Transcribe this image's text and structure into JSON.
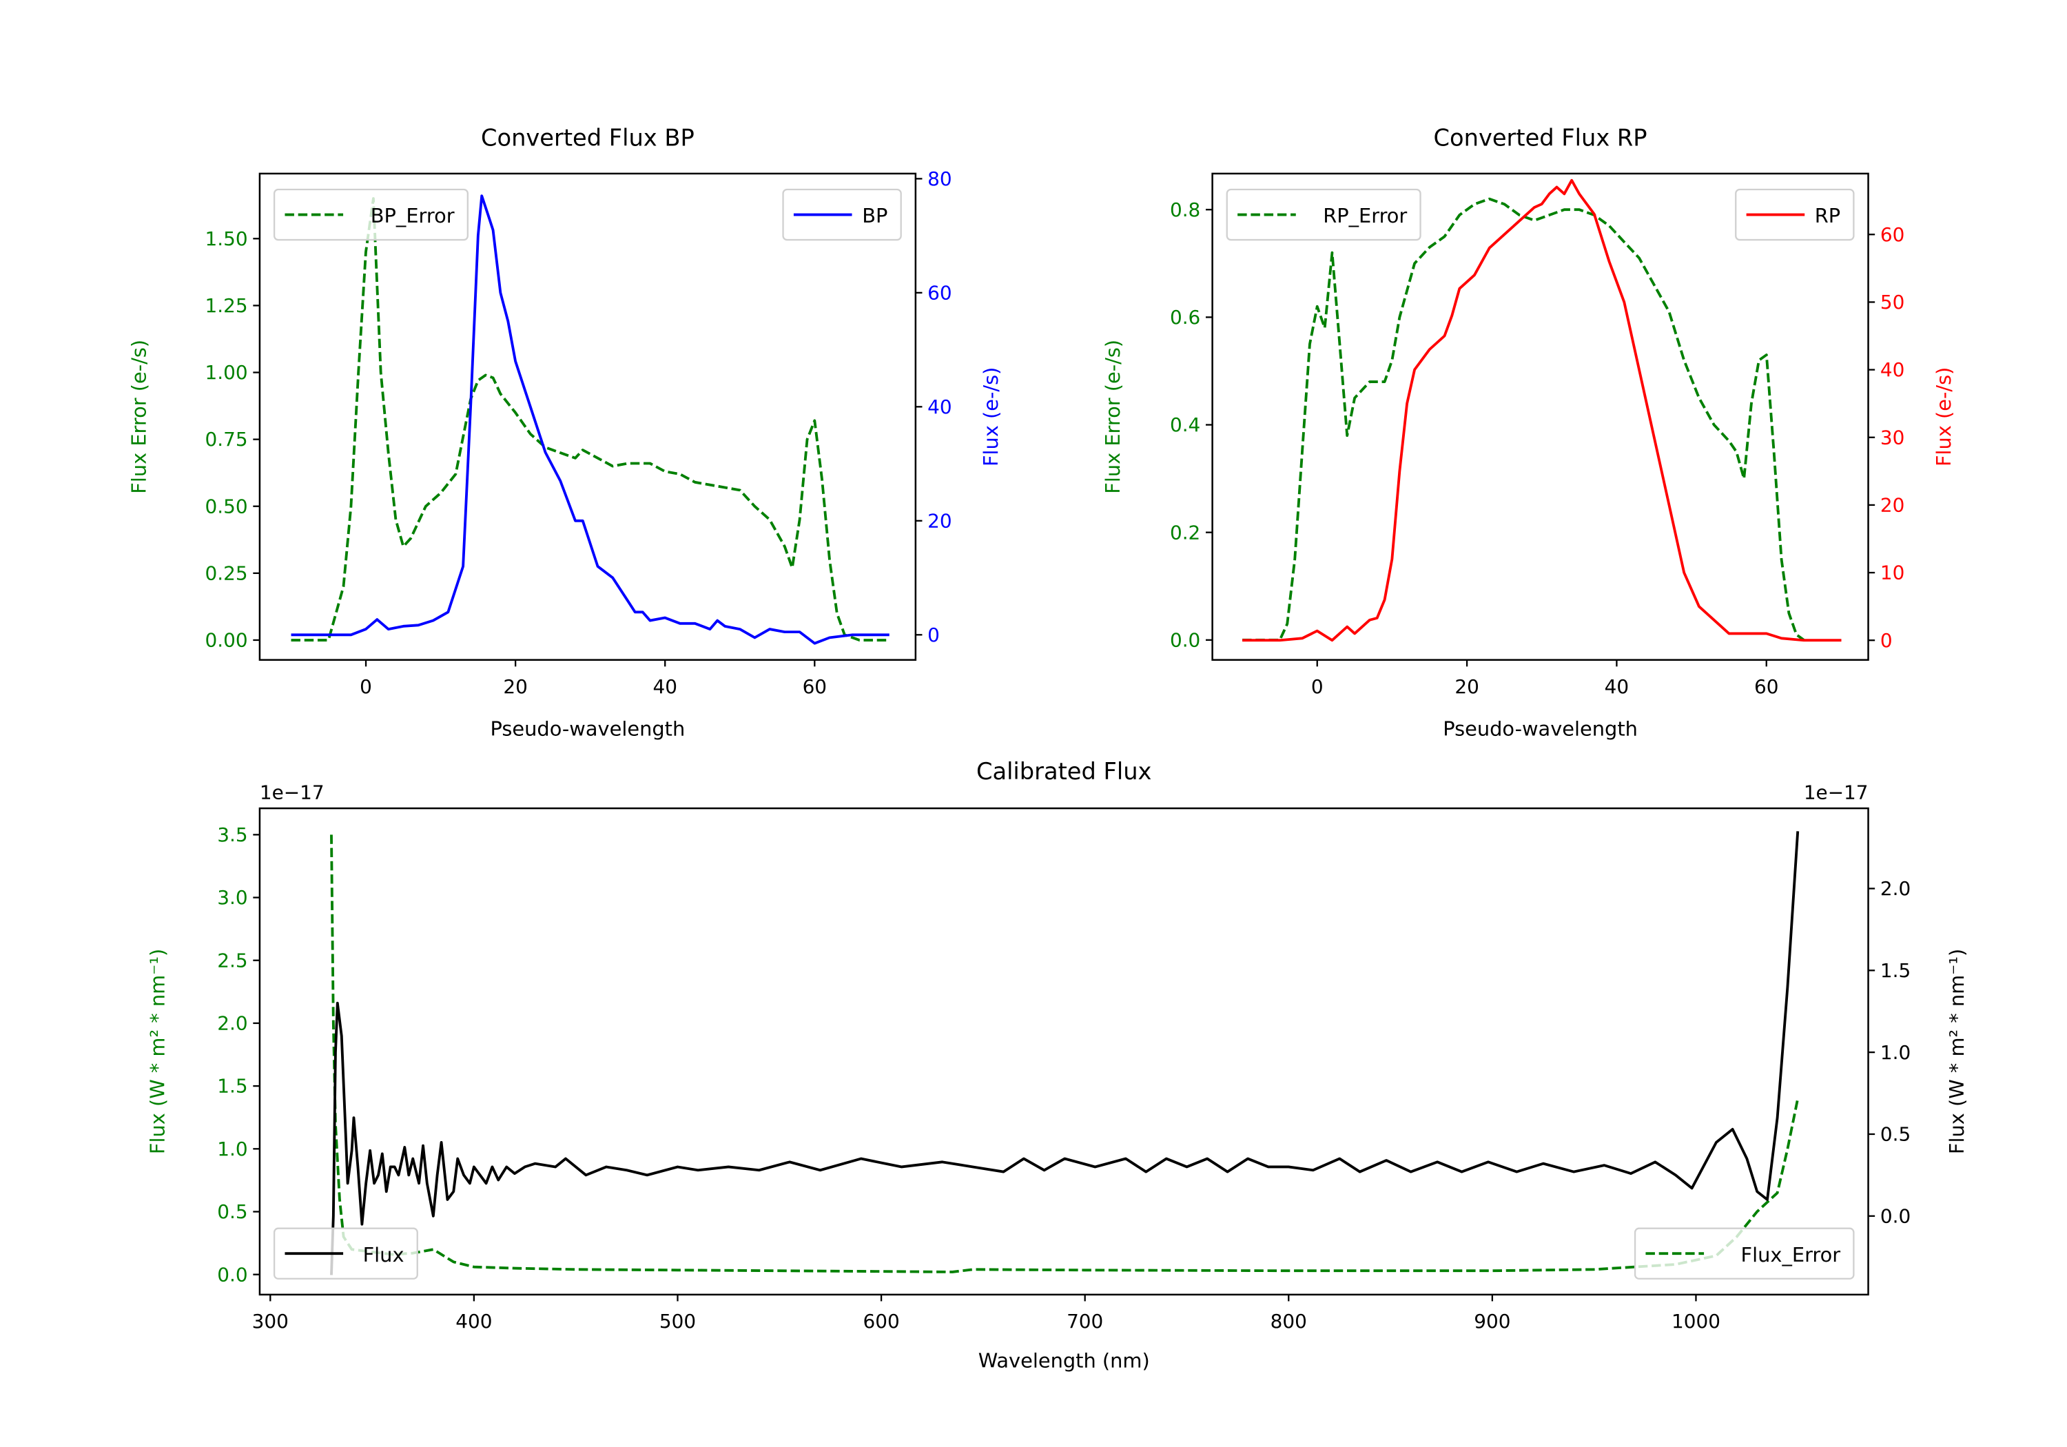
{
  "chart_data": [
    {
      "type": "line",
      "title": "Converted Flux BP",
      "xlabel": "Pseudo-wavelength",
      "ylabel_left": "Flux Error (e-/s)",
      "ylabel_right": "Flux (e-/s)",
      "left_color": "#008000",
      "right_color": "#0000ff",
      "xlim": [
        -14.2,
        73.5
      ],
      "ylim_left": [
        -0.074,
        1.743
      ],
      "ylim_right": [
        -4.4,
        80.9
      ],
      "xticks": [
        0,
        20,
        40,
        60
      ],
      "xtick_labels": [
        "0",
        "20",
        "40",
        "60"
      ],
      "yticks_left": [
        0,
        0.25,
        0.5,
        0.75,
        1.0,
        1.25,
        1.5
      ],
      "ytick_labels_left": [
        "0.00",
        "0.25",
        "0.50",
        "0.75",
        "1.00",
        "1.25",
        "1.50"
      ],
      "yticks_right": [
        0,
        20,
        40,
        60,
        80
      ],
      "ytick_labels_right": [
        "0",
        "20",
        "40",
        "60",
        "80"
      ],
      "series": [
        {
          "name": "BP_Error",
          "axis": "left",
          "color": "#008000",
          "style": "dashed",
          "legend": "upper left",
          "x": [
            -10,
            -5,
            -3,
            -2,
            -1,
            0,
            1,
            2,
            3,
            4,
            5,
            6,
            8,
            10,
            12,
            14,
            15,
            16,
            17,
            18,
            20,
            22,
            24,
            26,
            28,
            29,
            31,
            33,
            35,
            38,
            40,
            42,
            44,
            48,
            50,
            52,
            54,
            56,
            57,
            58,
            59,
            60,
            61,
            62,
            63,
            64,
            66,
            70
          ],
          "y": [
            0,
            0,
            0.2,
            0.5,
            1.0,
            1.45,
            1.65,
            1.0,
            0.7,
            0.45,
            0.35,
            0.38,
            0.5,
            0.55,
            0.62,
            0.9,
            0.97,
            0.99,
            0.98,
            0.92,
            0.85,
            0.77,
            0.72,
            0.7,
            0.68,
            0.71,
            0.68,
            0.65,
            0.66,
            0.66,
            0.63,
            0.62,
            0.59,
            0.57,
            0.56,
            0.5,
            0.45,
            0.35,
            0.27,
            0.45,
            0.75,
            0.82,
            0.6,
            0.3,
            0.1,
            0.02,
            0,
            0
          ]
        },
        {
          "name": "BP",
          "axis": "right",
          "color": "#0000ff",
          "style": "solid",
          "legend": "upper right",
          "x": [
            -10,
            -5,
            -2,
            0,
            1.5,
            3,
            5,
            7,
            9,
            11,
            13,
            14,
            15,
            15.5,
            16.5,
            17,
            18,
            19,
            20,
            22,
            24,
            26,
            28,
            29,
            31,
            33,
            35,
            36,
            37,
            38,
            40,
            42,
            44,
            46,
            47,
            48,
            50,
            52,
            54,
            56,
            58,
            60,
            62,
            65,
            70
          ],
          "y": [
            0,
            0,
            0,
            1,
            2.7,
            1,
            1.5,
            1.7,
            2.5,
            4,
            12,
            40,
            70,
            77,
            73,
            71,
            60,
            55,
            48,
            40,
            32,
            27,
            20,
            20,
            12,
            10,
            6,
            4,
            4,
            2.5,
            3,
            2,
            2,
            1,
            2.5,
            1.5,
            1,
            -0.5,
            1,
            0.5,
            0.5,
            -1.5,
            -0.5,
            0,
            0
          ]
        }
      ]
    },
    {
      "type": "line",
      "title": "Converted Flux RP",
      "xlabel": "Pseudo-wavelength",
      "ylabel_left": "Flux Error (e-/s)",
      "ylabel_right": "Flux (e-/s)",
      "left_color": "#008000",
      "right_color": "#ff0000",
      "xlim": [
        -14,
        73.6
      ],
      "ylim_left": [
        -0.037,
        0.867
      ],
      "ylim_right": [
        -2.9,
        69
      ],
      "xticks": [
        0,
        20,
        40,
        60
      ],
      "xtick_labels": [
        "0",
        "20",
        "40",
        "60"
      ],
      "yticks_left": [
        0,
        0.2,
        0.4,
        0.6,
        0.8
      ],
      "ytick_labels_left": [
        "0.0",
        "0.2",
        "0.4",
        "0.6",
        "0.8"
      ],
      "yticks_right": [
        0,
        10,
        20,
        30,
        40,
        50,
        60
      ],
      "ytick_labels_right": [
        "0",
        "10",
        "20",
        "30",
        "40",
        "50",
        "60"
      ],
      "series": [
        {
          "name": "RP_Error",
          "axis": "left",
          "color": "#008000",
          "style": "dashed",
          "legend": "upper left",
          "x": [
            -10,
            -5,
            -4,
            -3,
            -2,
            -1,
            0,
            1,
            2,
            3,
            4,
            5,
            7,
            9,
            10,
            11,
            13,
            15,
            17,
            19,
            21,
            23,
            25,
            27,
            29,
            31,
            33,
            35,
            37,
            39,
            41,
            43,
            45,
            47,
            49,
            51,
            53,
            55,
            56,
            57,
            58,
            59,
            60,
            61,
            62,
            63,
            64,
            65
          ],
          "y": [
            0,
            0,
            0.03,
            0.15,
            0.35,
            0.55,
            0.62,
            0.58,
            0.72,
            0.55,
            0.38,
            0.45,
            0.48,
            0.48,
            0.52,
            0.6,
            0.7,
            0.73,
            0.75,
            0.79,
            0.81,
            0.82,
            0.81,
            0.79,
            0.78,
            0.79,
            0.8,
            0.8,
            0.79,
            0.77,
            0.74,
            0.71,
            0.66,
            0.61,
            0.52,
            0.45,
            0.4,
            0.37,
            0.35,
            0.3,
            0.44,
            0.52,
            0.53,
            0.35,
            0.15,
            0.05,
            0.01,
            0
          ]
        },
        {
          "name": "RP",
          "axis": "right",
          "color": "#ff0000",
          "style": "solid",
          "legend": "upper right",
          "x": [
            -10,
            -5,
            -2,
            0,
            2,
            4,
            5,
            7,
            8,
            9,
            10,
            11,
            12,
            13,
            15,
            17,
            18,
            19,
            21,
            23,
            25,
            27,
            29,
            30,
            31,
            32,
            33,
            34,
            35,
            37,
            39,
            41,
            43,
            45,
            47,
            49,
            51,
            53,
            55,
            58,
            60,
            62,
            65,
            70
          ],
          "y": [
            0,
            0,
            0.3,
            1.4,
            0,
            2,
            1,
            3,
            3.3,
            6,
            12,
            25,
            35,
            40,
            43,
            45,
            48,
            52,
            54,
            58,
            60,
            62,
            64,
            64.5,
            66,
            67,
            66,
            68,
            66,
            63,
            56,
            50,
            40,
            30,
            20,
            10,
            5,
            3,
            1,
            1,
            1,
            0.3,
            0,
            0
          ]
        }
      ]
    },
    {
      "type": "line",
      "title": "Calibrated Flux",
      "xlabel": "Wavelength (nm)",
      "ylabel_left": "Flux (W * m² * nm⁻¹)",
      "ylabel_right": "Flux (W * m² * nm⁻¹)",
      "left_color": "#008000",
      "right_color": "#000000",
      "offset_left": "1e−17",
      "offset_right": "1e−17",
      "xlim": [
        294.8,
        1084.6
      ],
      "ylim_left": [
        -0.16,
        3.71
      ],
      "ylim_right": [
        -0.48,
        2.49
      ],
      "xticks": [
        300,
        400,
        500,
        600,
        700,
        800,
        900,
        1000
      ],
      "xtick_labels": [
        "300",
        "400",
        "500",
        "600",
        "700",
        "800",
        "900",
        "1000"
      ],
      "yticks_left": [
        0,
        0.5,
        1.0,
        1.5,
        2.0,
        2.5,
        3.0,
        3.5
      ],
      "ytick_labels_left": [
        "0.0",
        "0.5",
        "1.0",
        "1.5",
        "2.0",
        "2.5",
        "3.0",
        "3.5"
      ],
      "yticks_right": [
        0,
        0.5,
        1.0,
        1.5,
        2.0
      ],
      "ytick_labels_right": [
        "0.0",
        "0.5",
        "1.0",
        "1.5",
        "2.0"
      ],
      "series": [
        {
          "name": "Flux_Error",
          "axis": "left",
          "color": "#008000",
          "style": "dashed",
          "legend": "lower right",
          "x": [
            330,
            331,
            332,
            334,
            336,
            340,
            350,
            360,
            370,
            380,
            390,
            400,
            420,
            450,
            500,
            600,
            635,
            645,
            700,
            800,
            900,
            950,
            990,
            1010,
            1020,
            1030,
            1040,
            1045,
            1050
          ],
          "y": [
            3.5,
            2.0,
            1.2,
            0.6,
            0.3,
            0.2,
            0.18,
            0.16,
            0.17,
            0.2,
            0.1,
            0.06,
            0.05,
            0.04,
            0.035,
            0.025,
            0.02,
            0.04,
            0.035,
            0.03,
            0.03,
            0.04,
            0.08,
            0.15,
            0.3,
            0.5,
            0.65,
            1.0,
            1.4
          ]
        },
        {
          "name": "Flux",
          "axis": "right",
          "color": "#000000",
          "style": "solid",
          "legend": "lower left",
          "x": [
            330,
            331,
            332,
            333,
            335,
            337,
            338,
            340,
            341,
            343,
            345,
            347,
            349,
            351,
            353,
            355,
            357,
            359,
            361,
            363,
            366,
            368,
            370,
            373,
            375,
            377,
            380,
            382,
            384,
            387,
            390,
            392,
            395,
            398,
            400,
            403,
            406,
            409,
            412,
            416,
            420,
            425,
            430,
            440,
            445,
            455,
            465,
            475,
            485,
            500,
            510,
            525,
            540,
            555,
            570,
            590,
            610,
            630,
            645,
            660,
            670,
            680,
            690,
            705,
            720,
            730,
            740,
            750,
            760,
            770,
            780,
            790,
            800,
            812,
            825,
            835,
            848,
            860,
            873,
            885,
            898,
            912,
            925,
            940,
            955,
            968,
            980,
            990,
            998,
            1010,
            1018,
            1025,
            1030,
            1035,
            1040,
            1045,
            1050
          ],
          "y": [
            -0.36,
            0.0,
            1.0,
            1.3,
            1.1,
            0.5,
            0.2,
            0.4,
            0.6,
            0.3,
            -0.05,
            0.2,
            0.4,
            0.2,
            0.25,
            0.38,
            0.15,
            0.3,
            0.3,
            0.25,
            0.42,
            0.25,
            0.35,
            0.2,
            0.43,
            0.2,
            0.0,
            0.25,
            0.45,
            0.1,
            0.15,
            0.35,
            0.25,
            0.2,
            0.3,
            0.25,
            0.2,
            0.3,
            0.22,
            0.3,
            0.26,
            0.3,
            0.32,
            0.3,
            0.35,
            0.25,
            0.3,
            0.28,
            0.25,
            0.3,
            0.28,
            0.3,
            0.28,
            0.33,
            0.28,
            0.35,
            0.3,
            0.33,
            0.3,
            0.27,
            0.35,
            0.28,
            0.35,
            0.3,
            0.35,
            0.27,
            0.35,
            0.3,
            0.35,
            0.27,
            0.35,
            0.3,
            0.3,
            0.28,
            0.35,
            0.27,
            0.34,
            0.27,
            0.33,
            0.27,
            0.33,
            0.27,
            0.32,
            0.27,
            0.31,
            0.26,
            0.33,
            0.25,
            0.17,
            0.45,
            0.53,
            0.35,
            0.15,
            0.1,
            0.6,
            1.4,
            2.35
          ]
        }
      ]
    }
  ]
}
